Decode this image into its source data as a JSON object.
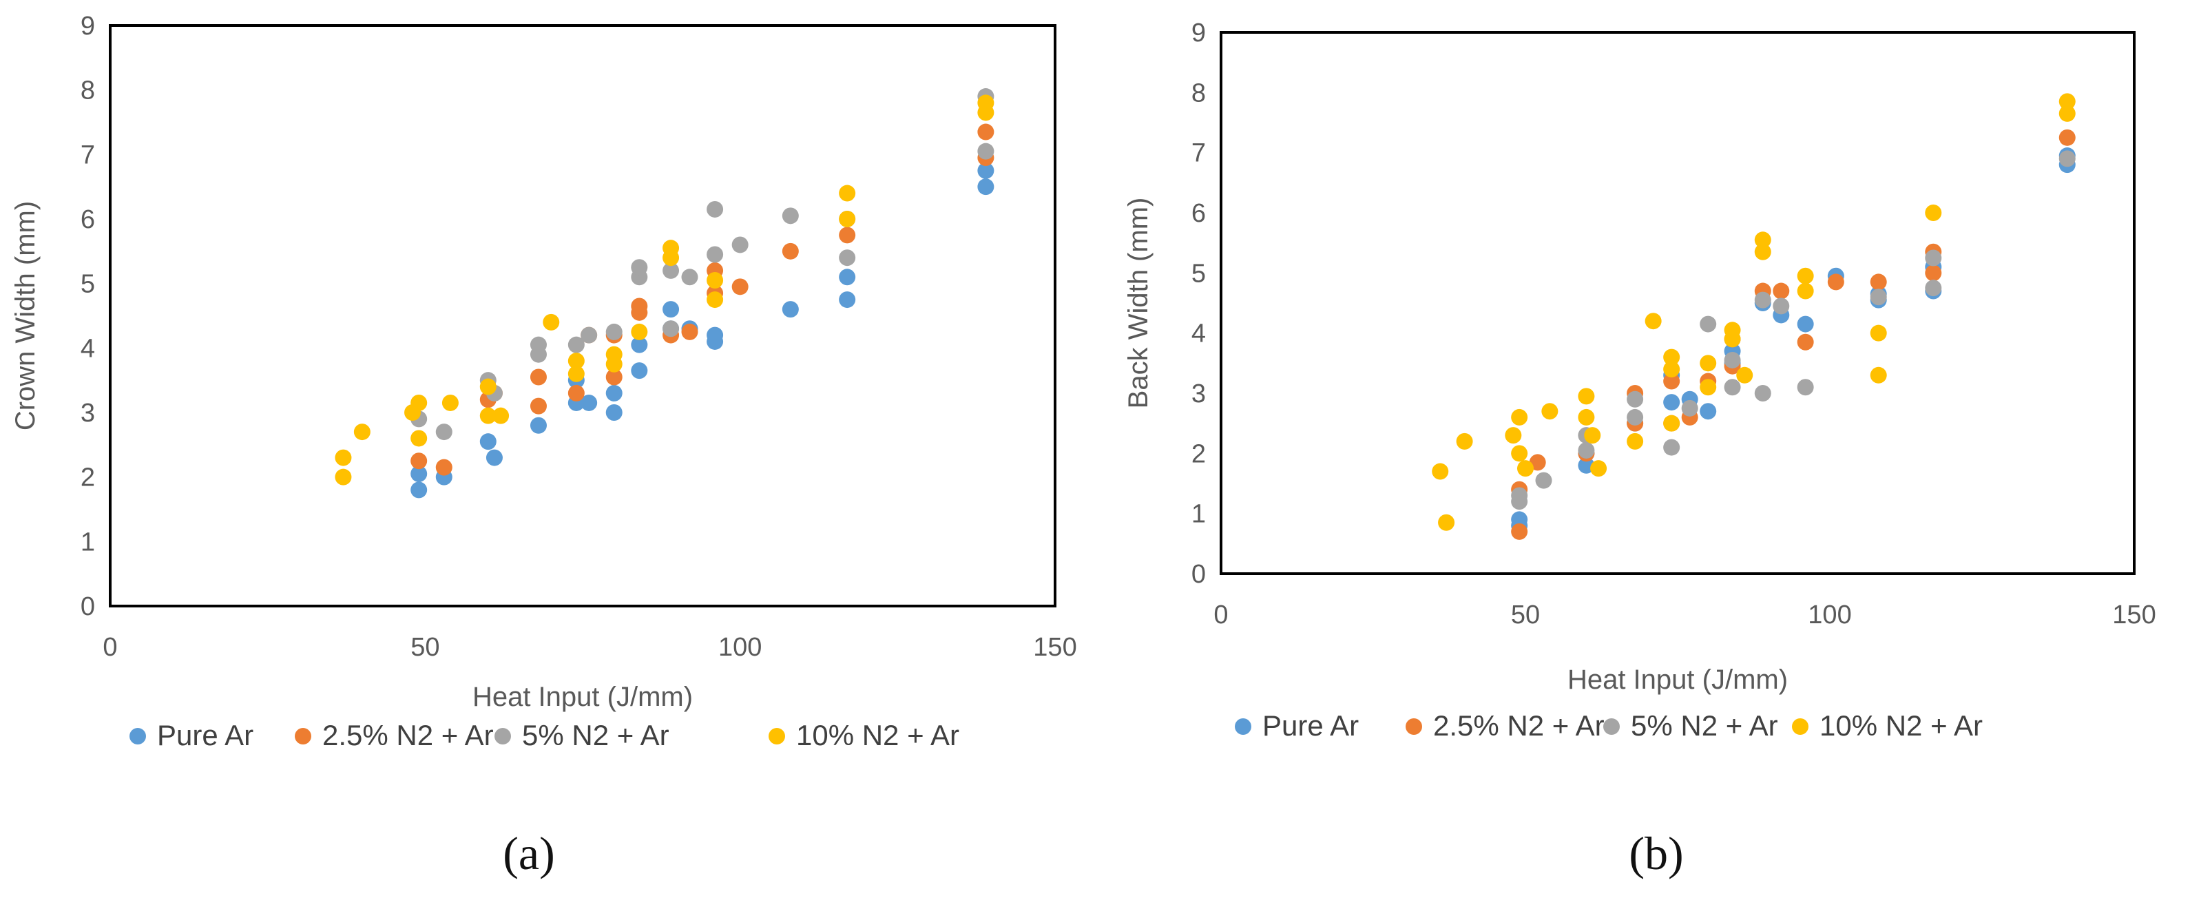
{
  "chart_data": [
    {
      "type": "scatter",
      "id": "a",
      "caption": "(a)",
      "xlabel": "Heat Input (J/mm)",
      "ylabel": "Crown Width (mm)",
      "xlim": [
        0,
        150
      ],
      "ylim": [
        0,
        9
      ],
      "xticks": [
        "0",
        "50",
        "100",
        "150"
      ],
      "yticks": [
        "0",
        "1",
        "2",
        "3",
        "4",
        "5",
        "6",
        "7",
        "8",
        "9"
      ],
      "series": [
        {
          "name": "Pure Ar",
          "color": "#5B9BD5",
          "points": [
            [
              49,
              1.8
            ],
            [
              49,
              2.05
            ],
            [
              53,
              2.0
            ],
            [
              60,
              2.55
            ],
            [
              61,
              2.3
            ],
            [
              68,
              2.8
            ],
            [
              74,
              3.15
            ],
            [
              74,
              3.5
            ],
            [
              76,
              3.15
            ],
            [
              80,
              3.0
            ],
            [
              80,
              3.3
            ],
            [
              84,
              3.65
            ],
            [
              84,
              4.05
            ],
            [
              89,
              4.3
            ],
            [
              89,
              4.6
            ],
            [
              92,
              4.3
            ],
            [
              96,
              4.1
            ],
            [
              96,
              4.2
            ],
            [
              108,
              4.6
            ],
            [
              117,
              4.75
            ],
            [
              117,
              5.1
            ],
            [
              139,
              6.5
            ],
            [
              139,
              6.75
            ]
          ]
        },
        {
          "name": "2.5% N2 + Ar",
          "color": "#ED7D31",
          "points": [
            [
              49,
              2.25
            ],
            [
              53,
              2.15
            ],
            [
              60,
              3.2
            ],
            [
              61,
              3.3
            ],
            [
              68,
              3.1
            ],
            [
              68,
              3.55
            ],
            [
              74,
              3.3
            ],
            [
              76,
              4.2
            ],
            [
              80,
              3.55
            ],
            [
              80,
              4.2
            ],
            [
              84,
              4.55
            ],
            [
              84,
              4.65
            ],
            [
              89,
              4.2
            ],
            [
              92,
              4.25
            ],
            [
              96,
              4.85
            ],
            [
              96,
              5.2
            ],
            [
              100,
              4.95
            ],
            [
              108,
              5.5
            ],
            [
              117,
              5.75
            ],
            [
              139,
              6.95
            ],
            [
              139,
              7.35
            ]
          ]
        },
        {
          "name": "5% N2 + Ar",
          "color": "#A5A5A5",
          "points": [
            [
              49,
              2.9
            ],
            [
              53,
              2.7
            ],
            [
              60,
              3.5
            ],
            [
              61,
              3.3
            ],
            [
              68,
              3.9
            ],
            [
              68,
              4.05
            ],
            [
              74,
              4.05
            ],
            [
              76,
              4.2
            ],
            [
              80,
              4.25
            ],
            [
              84,
              5.1
            ],
            [
              84,
              5.25
            ],
            [
              89,
              4.3
            ],
            [
              89,
              5.2
            ],
            [
              92,
              5.1
            ],
            [
              96,
              5.45
            ],
            [
              96,
              6.15
            ],
            [
              100,
              5.6
            ],
            [
              108,
              6.05
            ],
            [
              117,
              5.4
            ],
            [
              117,
              6.0
            ],
            [
              139,
              7.05
            ],
            [
              139,
              7.9
            ]
          ]
        },
        {
          "name": "10% N2 + Ar",
          "color": "#FFC000",
          "points": [
            [
              37,
              2.0
            ],
            [
              37,
              2.3
            ],
            [
              40,
              2.7
            ],
            [
              48,
              3.0
            ],
            [
              49,
              3.15
            ],
            [
              49,
              2.6
            ],
            [
              54,
              3.15
            ],
            [
              60,
              2.95
            ],
            [
              60,
              3.4
            ],
            [
              62,
              2.95
            ],
            [
              70,
              4.4
            ],
            [
              74,
              3.6
            ],
            [
              74,
              3.8
            ],
            [
              80,
              3.75
            ],
            [
              80,
              3.9
            ],
            [
              84,
              4.25
            ],
            [
              89,
              5.4
            ],
            [
              89,
              5.55
            ],
            [
              96,
              4.75
            ],
            [
              96,
              5.05
            ],
            [
              117,
              6.0
            ],
            [
              117,
              6.4
            ],
            [
              139,
              7.65
            ],
            [
              139,
              7.8
            ]
          ]
        }
      ]
    },
    {
      "type": "scatter",
      "id": "b",
      "caption": "(b)",
      "xlabel": "Heat Input (J/mm)",
      "ylabel": "Back Width (mm)",
      "xlim": [
        0,
        150
      ],
      "ylim": [
        0,
        9
      ],
      "xticks": [
        "0",
        "50",
        "100",
        "150"
      ],
      "yticks": [
        "0",
        "1",
        "2",
        "3",
        "4",
        "5",
        "6",
        "7",
        "8",
        "9"
      ],
      "series": [
        {
          "name": "Pure Ar",
          "color": "#5B9BD5",
          "points": [
            [
              49,
              0.8
            ],
            [
              49,
              0.9
            ],
            [
              60,
              1.8
            ],
            [
              60,
              2.0
            ],
            [
              68,
              2.5
            ],
            [
              74,
              2.85
            ],
            [
              74,
              3.3
            ],
            [
              77,
              2.9
            ],
            [
              80,
              2.7
            ],
            [
              84,
              3.5
            ],
            [
              84,
              3.7
            ],
            [
              89,
              4.5
            ],
            [
              92,
              4.3
            ],
            [
              96,
              4.15
            ],
            [
              101,
              4.95
            ],
            [
              108,
              4.55
            ],
            [
              108,
              4.65
            ],
            [
              117,
              4.7
            ],
            [
              117,
              5.1
            ],
            [
              139,
              6.8
            ],
            [
              139,
              6.95
            ]
          ]
        },
        {
          "name": "2.5% N2 + Ar",
          "color": "#ED7D31",
          "points": [
            [
              49,
              0.7
            ],
            [
              49,
              1.4
            ],
            [
              52,
              1.85
            ],
            [
              60,
              2.0
            ],
            [
              68,
              2.5
            ],
            [
              68,
              3.0
            ],
            [
              74,
              2.5
            ],
            [
              74,
              3.2
            ],
            [
              77,
              2.6
            ],
            [
              80,
              3.2
            ],
            [
              84,
              3.45
            ],
            [
              84,
              3.9
            ],
            [
              89,
              4.7
            ],
            [
              92,
              4.7
            ],
            [
              96,
              3.85
            ],
            [
              101,
              4.85
            ],
            [
              108,
              4.85
            ],
            [
              117,
              5.0
            ],
            [
              117,
              5.35
            ],
            [
              139,
              7.25
            ]
          ]
        },
        {
          "name": "5% N2 + Ar",
          "color": "#A5A5A5",
          "points": [
            [
              49,
              1.2
            ],
            [
              49,
              1.3
            ],
            [
              53,
              1.55
            ],
            [
              60,
              2.05
            ],
            [
              60,
              2.3
            ],
            [
              68,
              2.6
            ],
            [
              68,
              2.9
            ],
            [
              74,
              2.1
            ],
            [
              77,
              2.75
            ],
            [
              80,
              4.15
            ],
            [
              84,
              3.1
            ],
            [
              84,
              3.55
            ],
            [
              89,
              3.0
            ],
            [
              89,
              4.55
            ],
            [
              92,
              4.45
            ],
            [
              96,
              3.1
            ],
            [
              108,
              4.6
            ],
            [
              117,
              4.75
            ],
            [
              117,
              5.25
            ],
            [
              139,
              6.9
            ]
          ]
        },
        {
          "name": "10% N2 + Ar",
          "color": "#FFC000",
          "points": [
            [
              36,
              1.7
            ],
            [
              37,
              0.85
            ],
            [
              40,
              2.2
            ],
            [
              48,
              2.3
            ],
            [
              49,
              2.6
            ],
            [
              49,
              2.0
            ],
            [
              50,
              1.75
            ],
            [
              54,
              2.7
            ],
            [
              60,
              2.6
            ],
            [
              60,
              2.95
            ],
            [
              61,
              2.3
            ],
            [
              62,
              1.75
            ],
            [
              68,
              2.2
            ],
            [
              71,
              4.2
            ],
            [
              74,
              2.5
            ],
            [
              74,
              3.4
            ],
            [
              74,
              3.6
            ],
            [
              80,
              3.1
            ],
            [
              80,
              3.5
            ],
            [
              84,
              3.9
            ],
            [
              84,
              4.05
            ],
            [
              86,
              3.3
            ],
            [
              89,
              5.35
            ],
            [
              89,
              5.55
            ],
            [
              96,
              4.7
            ],
            [
              96,
              4.95
            ],
            [
              108,
              3.3
            ],
            [
              108,
              4.0
            ],
            [
              117,
              6.0
            ],
            [
              139,
              7.65
            ],
            [
              139,
              7.85
            ]
          ]
        }
      ]
    }
  ]
}
